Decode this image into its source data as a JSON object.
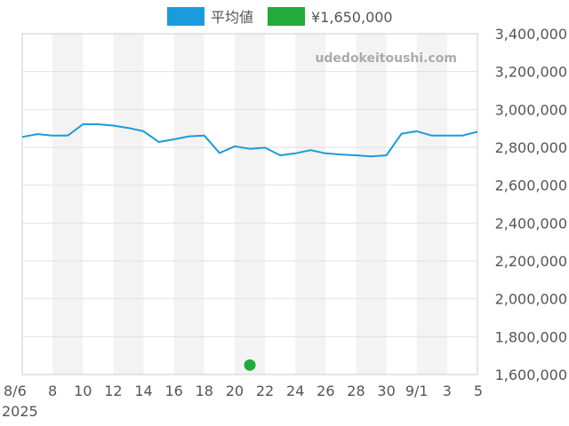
{
  "chart_data": {
    "type": "line",
    "title": "",
    "xlabel": "",
    "ylabel": "",
    "watermark": "udedokeitoushi.com",
    "ylim": [
      1600000,
      3400000
    ],
    "y_ticks": [
      "1,600,000",
      "1,800,000",
      "2,000,000",
      "2,200,000",
      "2,400,000",
      "2,600,000",
      "2,800,000",
      "3,000,000",
      "3,200,000",
      "3,400,000"
    ],
    "x_range": [
      "2025-08-06",
      "2025-09-05"
    ],
    "x_ticks": [
      {
        "date": "2025-08-06",
        "label": "8/6",
        "sublabel": "2025"
      },
      {
        "date": "2025-08-08",
        "label": "8"
      },
      {
        "date": "2025-08-10",
        "label": "10"
      },
      {
        "date": "2025-08-12",
        "label": "12"
      },
      {
        "date": "2025-08-14",
        "label": "14"
      },
      {
        "date": "2025-08-16",
        "label": "16"
      },
      {
        "date": "2025-08-18",
        "label": "18"
      },
      {
        "date": "2025-08-20",
        "label": "20"
      },
      {
        "date": "2025-08-22",
        "label": "22"
      },
      {
        "date": "2025-08-24",
        "label": "24"
      },
      {
        "date": "2025-08-26",
        "label": "26"
      },
      {
        "date": "2025-08-28",
        "label": "28"
      },
      {
        "date": "2025-08-30",
        "label": "30"
      },
      {
        "date": "2025-09-01",
        "label": "9/1"
      },
      {
        "date": "2025-09-03",
        "label": "3"
      },
      {
        "date": "2025-09-05",
        "label": "5"
      }
    ],
    "legend_position": "top-center",
    "series": [
      {
        "name": "平均値",
        "type": "line",
        "color": "#1a9bdc",
        "points": [
          [
            "2025-08-06",
            2855000
          ],
          [
            "2025-08-07",
            2870000
          ],
          [
            "2025-08-08",
            2862000
          ],
          [
            "2025-08-09",
            2862000
          ],
          [
            "2025-08-10",
            2922000
          ],
          [
            "2025-08-11",
            2922000
          ],
          [
            "2025-08-12",
            2915000
          ],
          [
            "2025-08-13",
            2902000
          ],
          [
            "2025-08-14",
            2885000
          ],
          [
            "2025-08-15",
            2828000
          ],
          [
            "2025-08-16",
            2842000
          ],
          [
            "2025-08-17",
            2858000
          ],
          [
            "2025-08-18",
            2862000
          ],
          [
            "2025-08-19",
            2770000
          ],
          [
            "2025-08-20",
            2805000
          ],
          [
            "2025-08-21",
            2792000
          ],
          [
            "2025-08-22",
            2798000
          ],
          [
            "2025-08-23",
            2758000
          ],
          [
            "2025-08-24",
            2768000
          ],
          [
            "2025-08-25",
            2785000
          ],
          [
            "2025-08-26",
            2768000
          ],
          [
            "2025-08-27",
            2762000
          ],
          [
            "2025-08-28",
            2758000
          ],
          [
            "2025-08-29",
            2752000
          ],
          [
            "2025-08-30",
            2758000
          ],
          [
            "2025-08-31",
            2872000
          ],
          [
            "2025-09-01",
            2885000
          ],
          [
            "2025-09-02",
            2862000
          ],
          [
            "2025-09-03",
            2862000
          ],
          [
            "2025-09-04",
            2862000
          ],
          [
            "2025-09-05",
            2882000
          ]
        ]
      },
      {
        "name": "¥1,650,000",
        "type": "scatter",
        "color": "#22aa3a",
        "points": [
          [
            "2025-08-21",
            1650000
          ]
        ]
      }
    ]
  }
}
